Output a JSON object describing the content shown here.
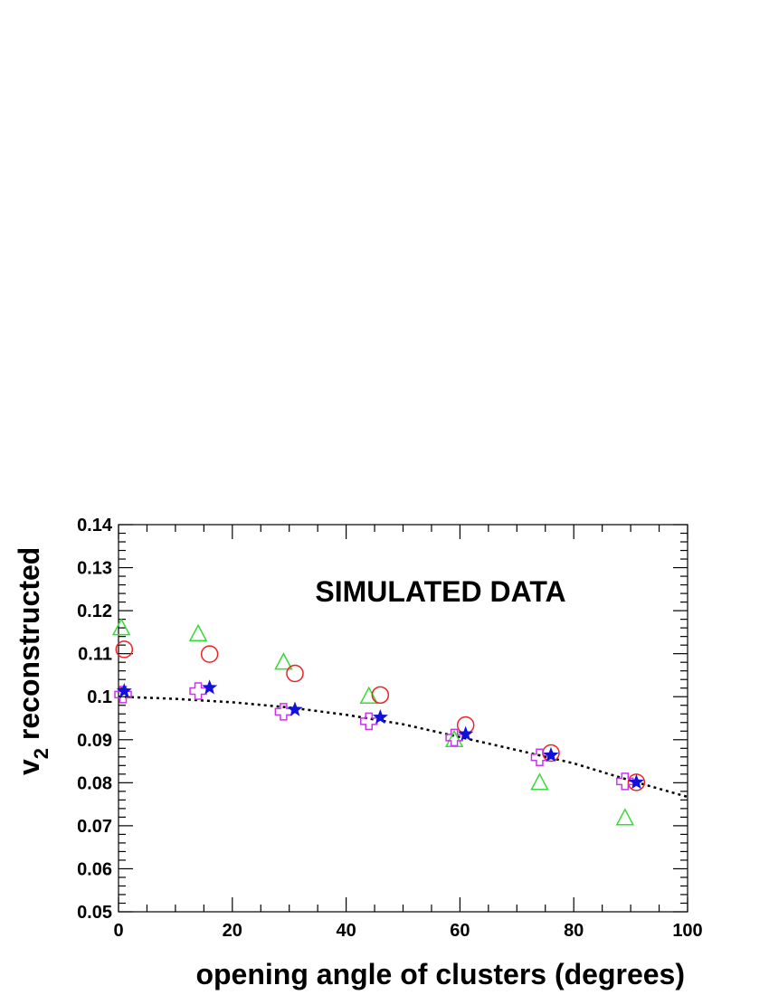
{
  "chart_data": {
    "type": "scatter",
    "title": "",
    "annotation": "SIMULATED DATA",
    "xlabel": "opening angle of clusters (degrees)",
    "ylabel_main": "v",
    "ylabel_sub": "2",
    "ylabel_rest": " reconstructed",
    "xlim": [
      0,
      100
    ],
    "ylim": [
      0.05,
      0.14
    ],
    "x_ticks": [
      0,
      20,
      40,
      60,
      80,
      100
    ],
    "x_tick_labels": [
      "0",
      "20",
      "40",
      "60",
      "80",
      "100"
    ],
    "y_ticks": [
      0.05,
      0.06,
      0.07,
      0.08,
      0.09,
      0.1,
      0.11,
      0.12,
      0.13,
      0.14
    ],
    "y_tick_labels": [
      "0.05",
      "0.06",
      "0.07",
      "0.08",
      "0.09",
      "0.1",
      "0.11",
      "0.12",
      "0.13",
      "0.14"
    ],
    "grid": false,
    "series": [
      {
        "marker": "triangle",
        "color": "#33dd33",
        "points": [
          [
            0.5,
            0.1159
          ],
          [
            14,
            0.1145
          ],
          [
            29,
            0.1079
          ],
          [
            44,
            0.1
          ],
          [
            59,
            0.0899
          ],
          [
            74,
            0.0799
          ],
          [
            89,
            0.0717
          ]
        ]
      },
      {
        "marker": "circle",
        "color": "#ee2222",
        "points": [
          [
            1,
            0.111
          ],
          [
            16,
            0.1099
          ],
          [
            31,
            0.1054
          ],
          [
            46,
            0.1004
          ],
          [
            61,
            0.0934
          ],
          [
            76,
            0.0869
          ],
          [
            91,
            0.0801
          ]
        ]
      },
      {
        "marker": "cross",
        "color": "#cc33ee",
        "points": [
          [
            0.8,
            0.1005
          ],
          [
            14,
            0.1013
          ],
          [
            29,
            0.0965
          ],
          [
            44,
            0.0943
          ],
          [
            59,
            0.0905
          ],
          [
            74,
            0.0859
          ],
          [
            89,
            0.0803
          ]
        ]
      },
      {
        "marker": "star",
        "color": "#1111dd",
        "points": [
          [
            1,
            0.1013
          ],
          [
            16,
            0.1021
          ],
          [
            31,
            0.097
          ],
          [
            46,
            0.0952
          ],
          [
            61,
            0.0913
          ],
          [
            76,
            0.0864
          ],
          [
            91,
            0.0801
          ]
        ]
      }
    ],
    "curve": {
      "style": "dotted",
      "color": "#000000",
      "points": [
        [
          0,
          0.1
        ],
        [
          10,
          0.0995
        ],
        [
          20,
          0.0987
        ],
        [
          30,
          0.0975
        ],
        [
          40,
          0.0958
        ],
        [
          50,
          0.0936
        ],
        [
          60,
          0.0906
        ],
        [
          70,
          0.0876
        ],
        [
          80,
          0.0845
        ],
        [
          90,
          0.0805
        ],
        [
          100,
          0.0767
        ]
      ]
    }
  }
}
